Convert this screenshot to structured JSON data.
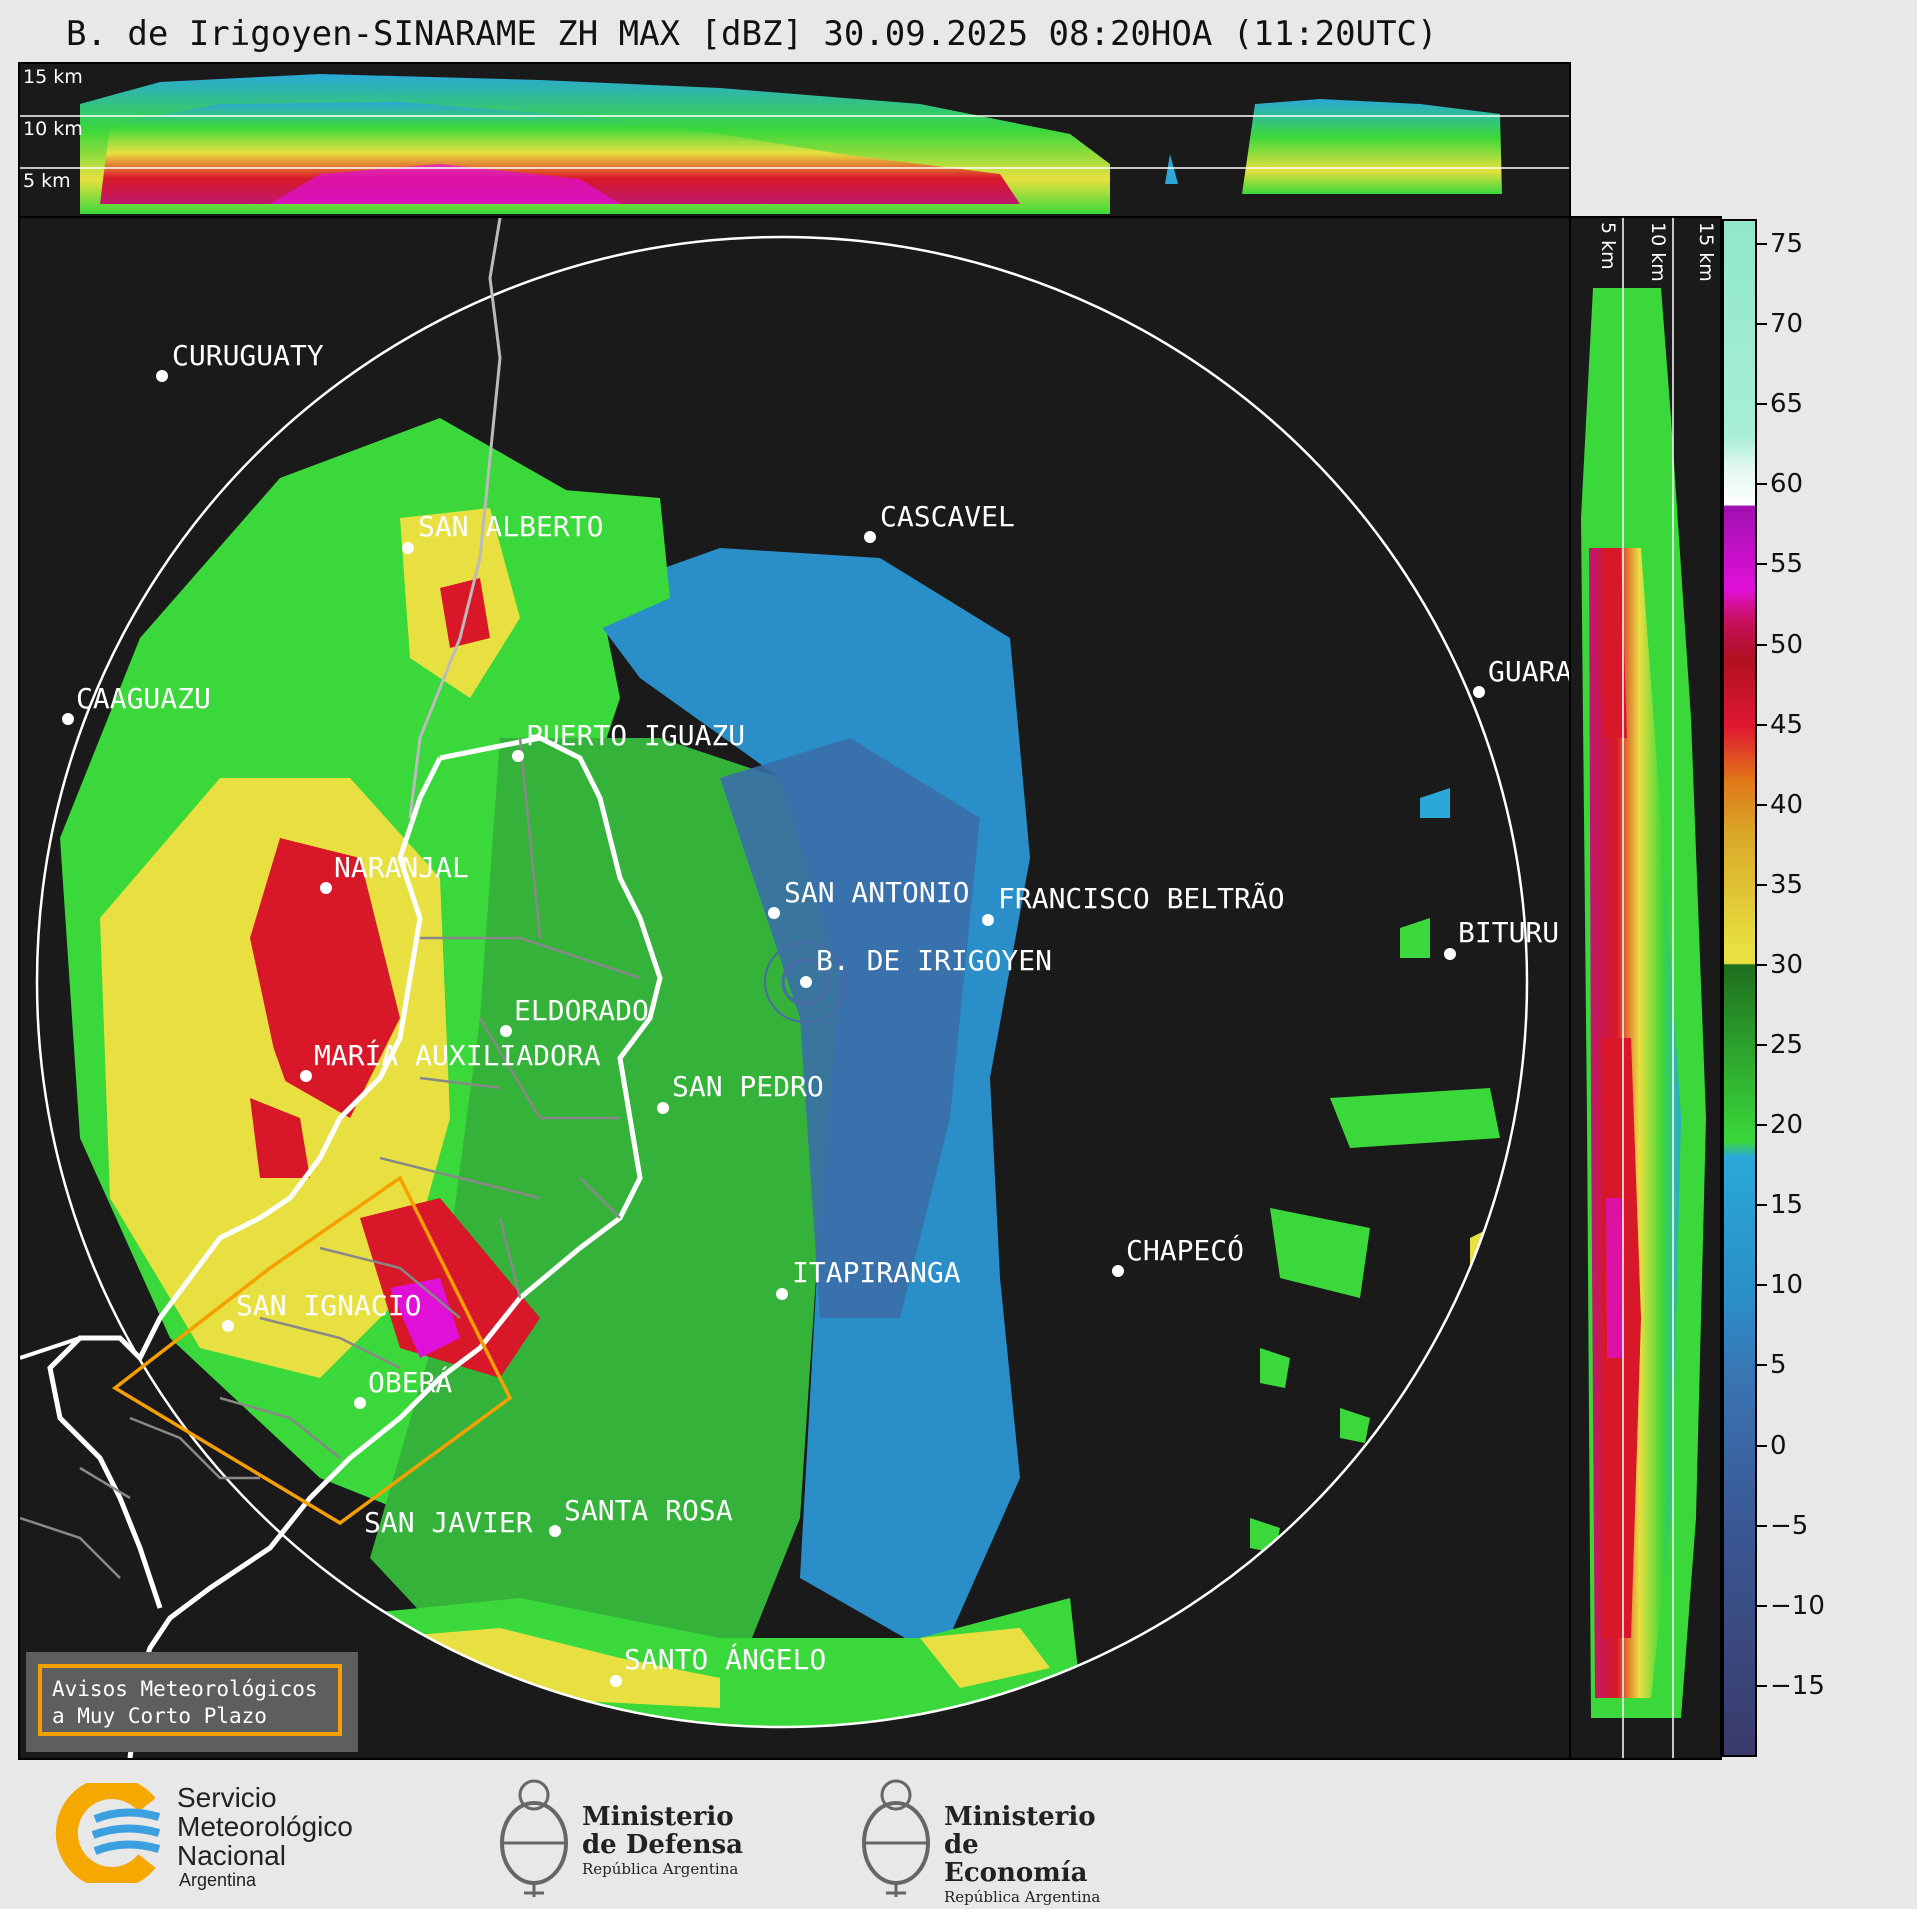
{
  "title": "B. de Irigoyen-SINARAME ZH MAX [dBZ] 30.09.2025 08:20HOA (11:20UTC)",
  "height_labels": [
    "15 km",
    "10 km",
    "5 km"
  ],
  "cities": [
    {
      "name": "CURUGUATY"
    },
    {
      "name": "SAN ALBERTO"
    },
    {
      "name": "CASCAVEL"
    },
    {
      "name": "CAAGUAZU"
    },
    {
      "name": "GUARA"
    },
    {
      "name": "PUERTO IGUAZU"
    },
    {
      "name": "NARANJAL"
    },
    {
      "name": "SAN ANTONIO"
    },
    {
      "name": "FRANCISCO BELTRÃO"
    },
    {
      "name": "BITURU"
    },
    {
      "name": "B. DE IRIGOYEN"
    },
    {
      "name": "ELDORADO"
    },
    {
      "name": "MARÍA AUXILIADORA"
    },
    {
      "name": "SAN PEDRO"
    },
    {
      "name": "CHAPECÓ"
    },
    {
      "name": "ITAPIRANGA"
    },
    {
      "name": "SAN IGNACIO"
    },
    {
      "name": "OBERÁ"
    },
    {
      "name": "SAN JAVIER"
    },
    {
      "name": "SANTA ROSA"
    },
    {
      "name": "SANTO ÁNGELO"
    }
  ],
  "colorbar": {
    "ticks": [
      "75",
      "70",
      "65",
      "60",
      "55",
      "50",
      "45",
      "40",
      "35",
      "30",
      "25",
      "20",
      "15",
      "10",
      "5",
      "0",
      "−5",
      "−10",
      "−15"
    ],
    "colors": {
      "cyan": "#2aa8d8",
      "green": "#3ad83a",
      "yellow": "#e8e040",
      "orange": "#e07818",
      "red": "#d81828",
      "magenta": "#e010d8",
      "white": "#ffffff",
      "teal": "#80e0c0",
      "darkblue": "#3a3a6a"
    }
  },
  "legend": {
    "line1": "Avisos Meteorológicos",
    "line2": "a Muy Corto Plazo",
    "border_color": "#f5a000"
  },
  "logos": {
    "smn": {
      "line1": "Servicio",
      "line2": "Meteorológico",
      "line3": "Nacional",
      "line4": "Argentina"
    },
    "defensa": {
      "line1": "Ministerio",
      "line2": "de Defensa",
      "line3": "República Argentina"
    },
    "economia": {
      "line1": "Ministerio",
      "line2": "de Economía",
      "line3": "República Argentina"
    }
  }
}
